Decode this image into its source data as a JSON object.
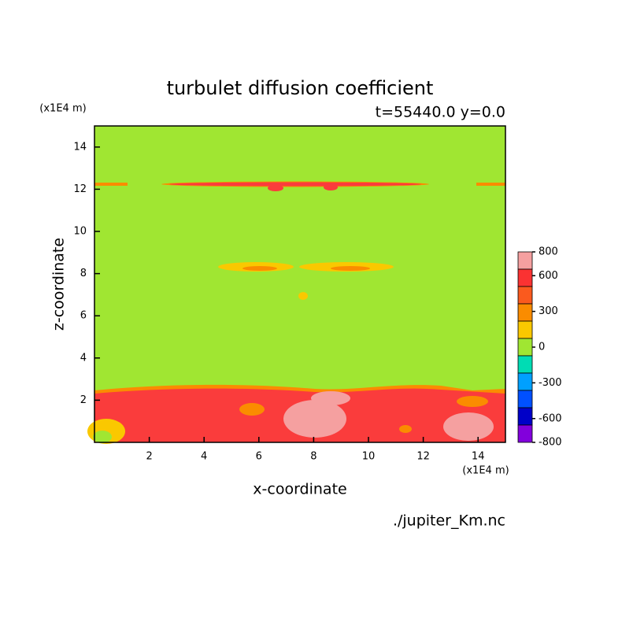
{
  "chart_data": {
    "type": "contour",
    "title": "turbulet diffusion coefficient",
    "subtitle": "t=55440.0 y=0.0",
    "source": "./jupiter_Km.nc",
    "x_label": "x-coordinate",
    "y_label": "z-coordinate",
    "x_unit": "(x1E4 m)",
    "y_unit": "(x1E4 m)",
    "xlim": [
      0,
      15
    ],
    "ylim": [
      0,
      15
    ],
    "xticks": [
      2,
      4,
      6,
      8,
      10,
      12,
      14
    ],
    "yticks": [
      2,
      4,
      6,
      8,
      10,
      12,
      14
    ],
    "colorbar": {
      "lim": [
        -800,
        800
      ],
      "ticks": [
        800,
        600,
        300,
        0,
        -300,
        -600,
        -800
      ],
      "colors": [
        "#f5a0a0",
        "#fa3232",
        "#fa5a1e",
        "#fa8c00",
        "#fac800",
        "#a0e632",
        "#00dcb4",
        "#00a0ff",
        "#0050ff",
        "#0000c8",
        "#8200dc"
      ]
    }
  }
}
